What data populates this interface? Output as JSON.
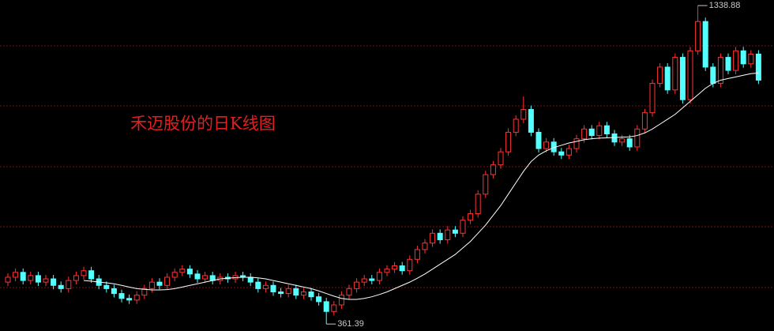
{
  "chart_data": {
    "type": "candlestick",
    "title": "禾迈股份的日K线图",
    "up_color": "#ff3232",
    "down_color": "#54ffff",
    "ma_color": "#ffffff",
    "ylim": [
      340,
      1356
    ],
    "open": [
      490,
      505,
      520,
      495,
      510,
      490,
      500,
      480,
      470,
      495,
      510,
      525,
      500,
      480,
      470,
      455,
      440,
      435,
      450,
      470,
      490,
      480,
      505,
      520,
      530,
      515,
      500,
      510,
      495,
      505,
      500,
      510,
      505,
      490,
      470,
      480,
      460,
      455,
      470,
      450,
      460,
      445,
      430,
      400,
      420,
      450,
      470,
      490,
      500,
      495,
      520,
      530,
      540,
      525,
      560,
      590,
      610,
      640,
      620,
      650,
      640,
      680,
      700,
      760,
      820,
      850,
      890,
      950,
      990,
      1020,
      950,
      900,
      920,
      890,
      880,
      900,
      930,
      960,
      940,
      970,
      945,
      920,
      930,
      905,
      960,
      1010,
      1100,
      1150,
      1080,
      1180,
      1050,
      1200,
      1290,
      1150,
      1100,
      1180,
      1140,
      1200,
      1160,
      1190
    ],
    "high": [
      517,
      532,
      532,
      522,
      522,
      512,
      512,
      492,
      507,
      522,
      537,
      537,
      512,
      492,
      482,
      467,
      452,
      462,
      482,
      502,
      502,
      517,
      532,
      542,
      542,
      527,
      522,
      522,
      517,
      517,
      522,
      522,
      517,
      502,
      492,
      492,
      472,
      482,
      482,
      472,
      472,
      457,
      442,
      432,
      462,
      482,
      502,
      512,
      512,
      532,
      542,
      552,
      552,
      572,
      602,
      622,
      652,
      652,
      662,
      662,
      692,
      712,
      772,
      832,
      862,
      902,
      962,
      1002,
      1060,
      1032,
      962,
      932,
      932,
      902,
      912,
      942,
      972,
      972,
      982,
      982,
      957,
      942,
      942,
      972,
      1022,
      1112,
      1162,
      1162,
      1192,
      1192,
      1212,
      1338.88,
      1302,
      1162,
      1192,
      1192,
      1212,
      1212,
      1202,
      1202
    ],
    "low": [
      478,
      493,
      483,
      483,
      478,
      478,
      468,
      458,
      458,
      483,
      498,
      488,
      468,
      458,
      443,
      428,
      423,
      423,
      438,
      458,
      468,
      468,
      493,
      508,
      503,
      488,
      488,
      483,
      483,
      488,
      488,
      493,
      478,
      458,
      458,
      448,
      443,
      443,
      438,
      438,
      433,
      418,
      361.39,
      388,
      408,
      438,
      458,
      478,
      483,
      483,
      508,
      518,
      513,
      513,
      548,
      578,
      598,
      608,
      608,
      628,
      628,
      668,
      688,
      748,
      808,
      838,
      878,
      938,
      978,
      938,
      888,
      888,
      878,
      868,
      868,
      888,
      918,
      928,
      928,
      933,
      908,
      908,
      893,
      893,
      948,
      998,
      1088,
      1068,
      1068,
      1038,
      1038,
      1188,
      1138,
      1088,
      1088,
      1128,
      1128,
      1148,
      1148,
      1098
    ],
    "close": [
      505,
      520,
      495,
      510,
      490,
      500,
      480,
      470,
      495,
      510,
      525,
      500,
      480,
      470,
      455,
      440,
      435,
      450,
      470,
      490,
      480,
      505,
      520,
      530,
      515,
      500,
      510,
      495,
      505,
      500,
      510,
      505,
      490,
      470,
      480,
      460,
      455,
      470,
      450,
      460,
      445,
      430,
      400,
      420,
      450,
      470,
      490,
      500,
      495,
      520,
      530,
      540,
      525,
      560,
      590,
      610,
      640,
      620,
      650,
      640,
      680,
      700,
      760,
      820,
      850,
      890,
      950,
      990,
      1020,
      950,
      900,
      920,
      890,
      880,
      900,
      930,
      960,
      940,
      970,
      945,
      920,
      930,
      905,
      960,
      1010,
      1100,
      1150,
      1080,
      1180,
      1050,
      1200,
      1290,
      1150,
      1100,
      1180,
      1140,
      1200,
      1160,
      1190,
      1110
    ],
    "ma": [
      null,
      null,
      null,
      null,
      null,
      null,
      null,
      null,
      null,
      null,
      495,
      493,
      490,
      488,
      485,
      480,
      475,
      470,
      468,
      466,
      466,
      467,
      470,
      475,
      480,
      485,
      490,
      495,
      500,
      502,
      504,
      505,
      505,
      503,
      500,
      495,
      490,
      485,
      480,
      475,
      470,
      463,
      455,
      447,
      440,
      437,
      437,
      440,
      445,
      452,
      460,
      470,
      480,
      490,
      502,
      515,
      530,
      545,
      560,
      575,
      595,
      615,
      640,
      665,
      695,
      725,
      760,
      795,
      830,
      860,
      880,
      893,
      903,
      910,
      917,
      922,
      927,
      930,
      932,
      933,
      934,
      935,
      936,
      940,
      948,
      960,
      975,
      990,
      1005,
      1025,
      1045,
      1065,
      1085,
      1100,
      1110,
      1115,
      1120,
      1125,
      1130,
      1132
    ]
  }
}
